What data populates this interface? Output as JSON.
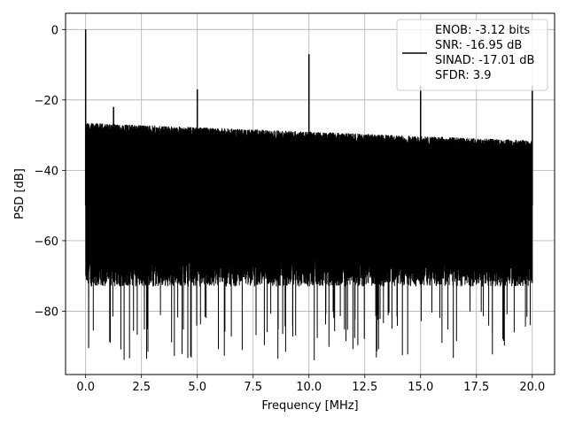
{
  "chart_data": {
    "type": "line",
    "title": "",
    "xlabel": "Frequency [MHz]",
    "ylabel": "PSD [dB]",
    "xlim": [
      -0.9,
      21.0
    ],
    "ylim": [
      -98,
      4.6
    ],
    "grid": true,
    "xticks": [
      0.0,
      2.5,
      5.0,
      7.5,
      10.0,
      12.5,
      15.0,
      17.5,
      20.0
    ],
    "xtick_labels": [
      "0.0",
      "2.5",
      "5.0",
      "7.5",
      "10.0",
      "12.5",
      "15.0",
      "17.5",
      "20.0"
    ],
    "yticks": [
      0,
      -20,
      -40,
      -60,
      -80
    ],
    "ytick_labels": [
      "0",
      "−20",
      "−40",
      "−60",
      "−80"
    ],
    "legend": {
      "placement": "top-right",
      "lines": [
        "ENOB: -3.12 bits",
        "SNR: -16.95 dB",
        "SINAD: -17.01 dB",
        "SFDR: 3.9"
      ]
    },
    "series": [
      {
        "color": "#000000",
        "x_range": [
          0.0,
          20.0
        ],
        "noise_ceiling_start": -28,
        "noise_ceiling_end": -33,
        "noise_floor_typical": -70,
        "noise_floor_deep_min": -94,
        "peaks": [
          {
            "x": 0.0,
            "y": 0.0
          },
          {
            "x": 1.25,
            "y": -22
          },
          {
            "x": 5.0,
            "y": -17
          },
          {
            "x": 10.0,
            "y": -7
          },
          {
            "x": 15.0,
            "y": -16
          },
          {
            "x": 20.0,
            "y": -16
          }
        ]
      }
    ]
  }
}
